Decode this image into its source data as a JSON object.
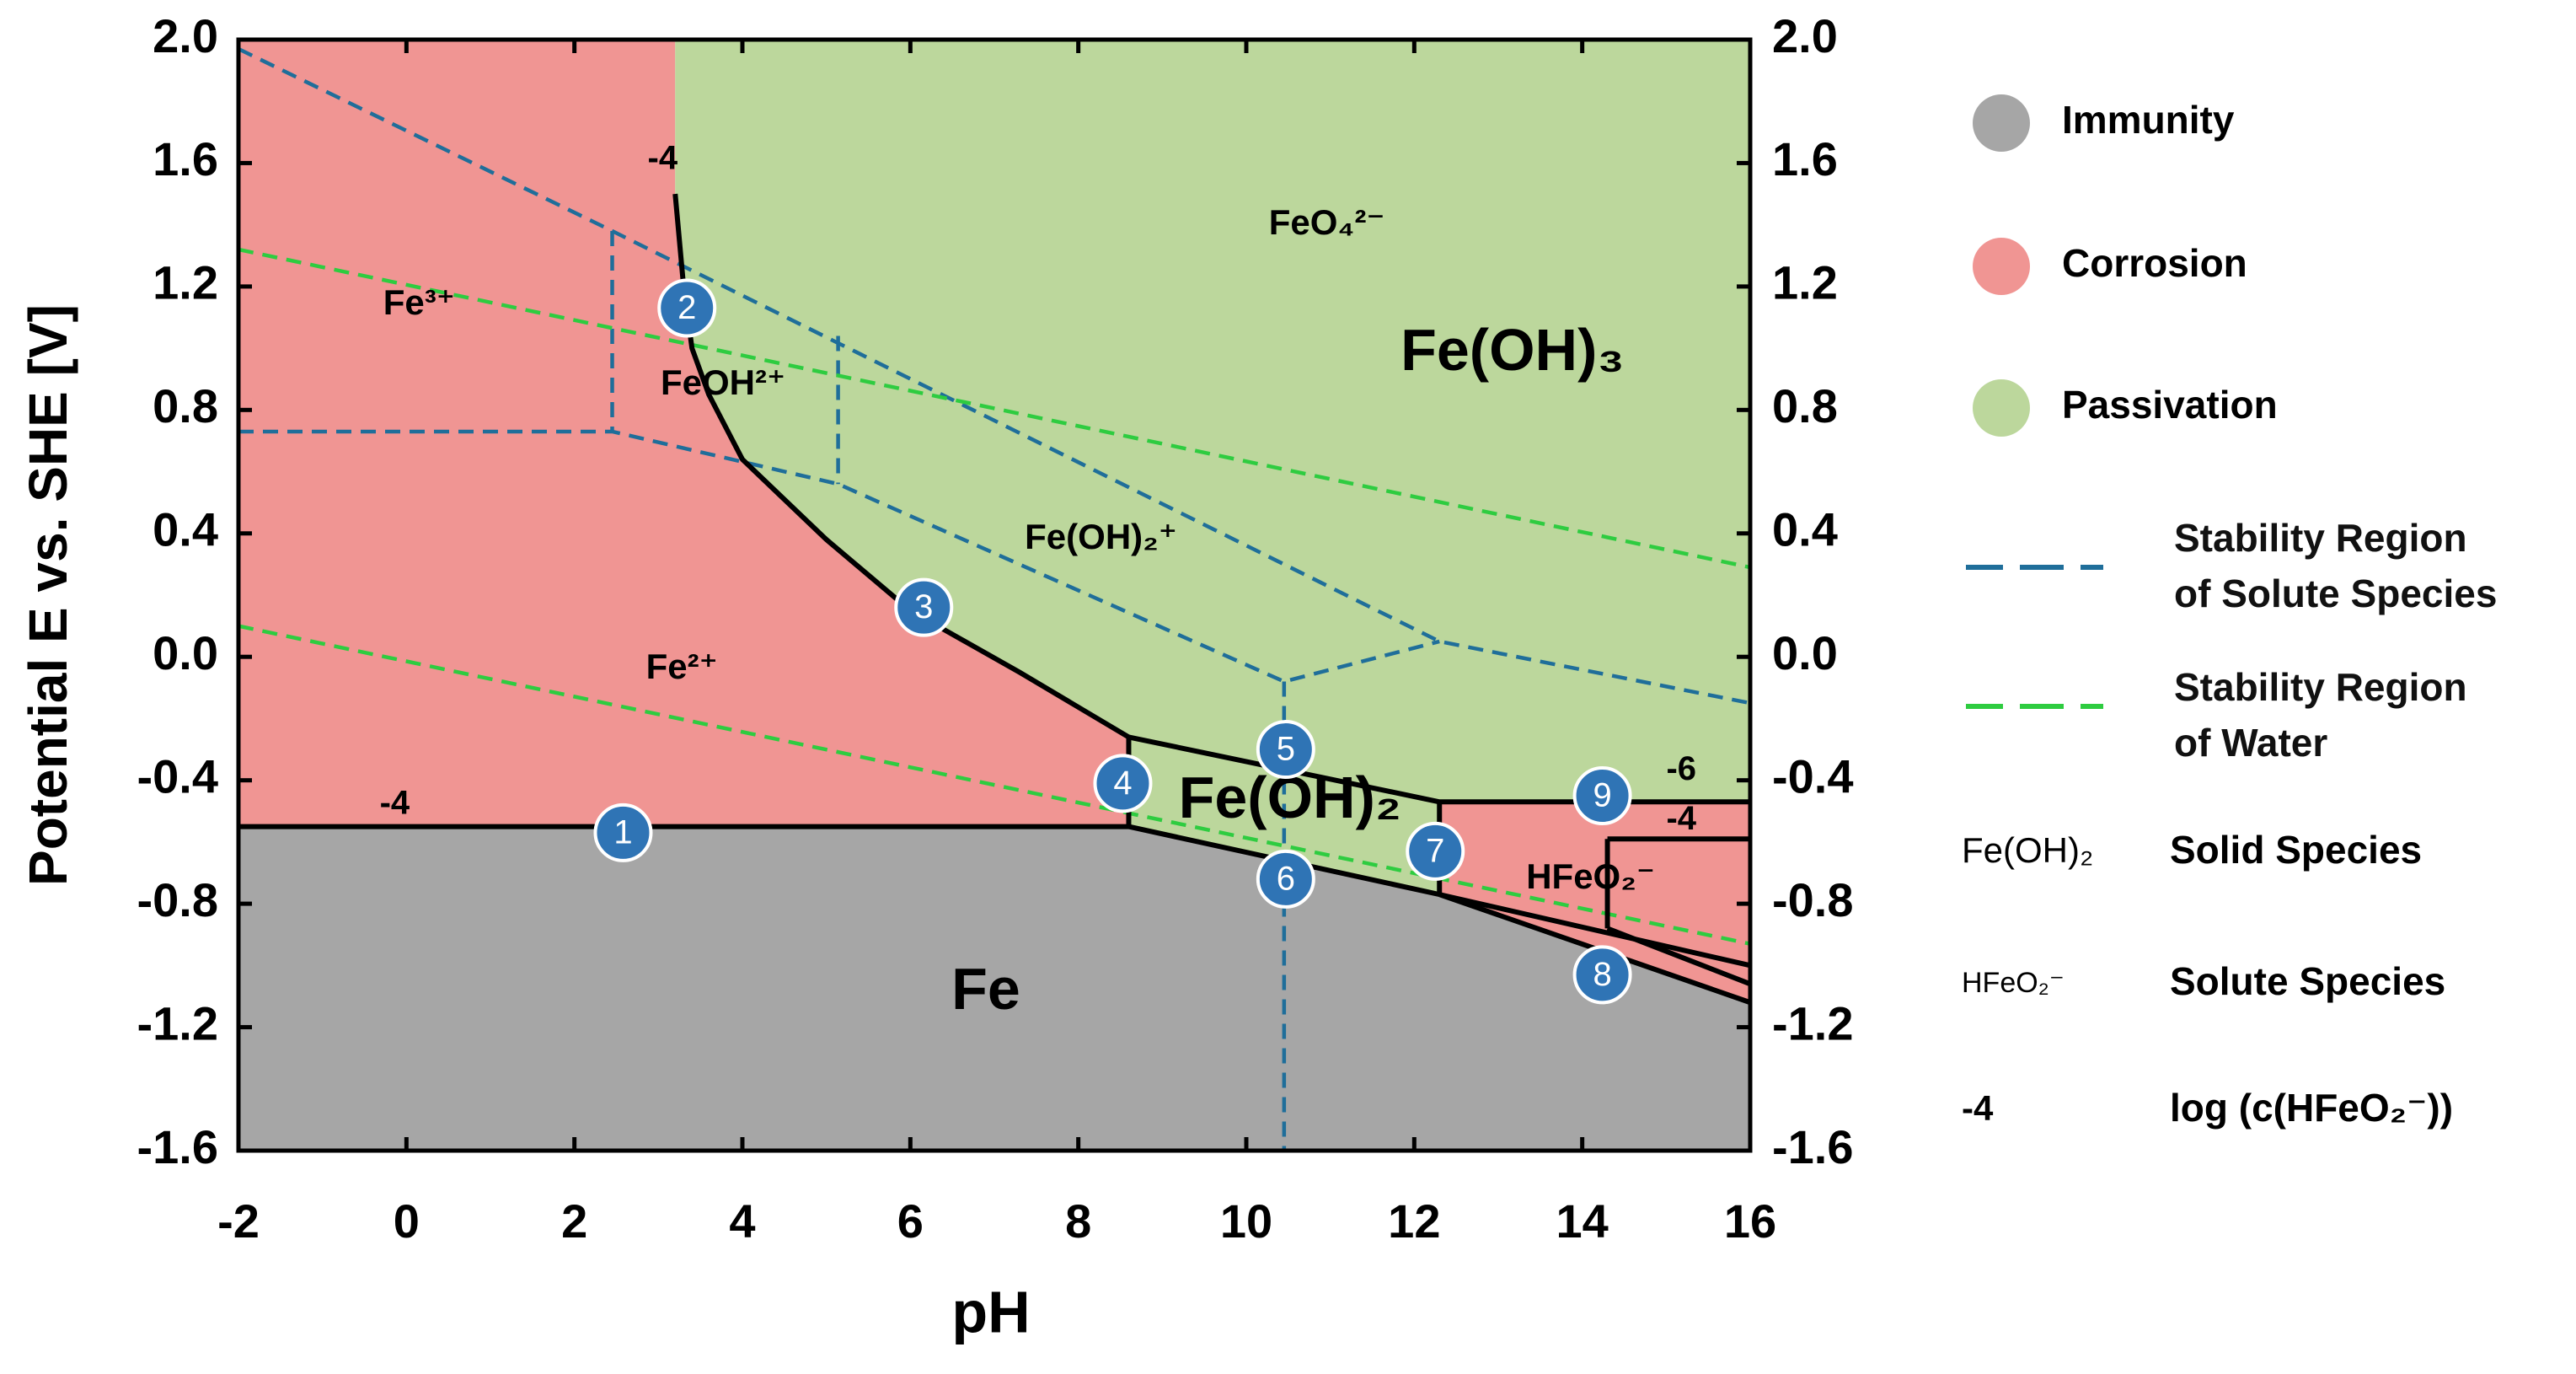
{
  "chart_data": {
    "type": "pourbaix",
    "xlabel": "pH",
    "ylabel": "Potential E vs. SHE [V]",
    "xlim": [
      -2,
      16
    ],
    "ylim": [
      -1.6,
      2.0
    ],
    "y2lim": [
      -1.6,
      2.0
    ],
    "xticks": [
      -2,
      0,
      2,
      4,
      6,
      8,
      10,
      12,
      14,
      16
    ],
    "yticks": [
      -1.6,
      -1.2,
      -0.8,
      -0.4,
      {
        "value": 0,
        "label": "0.0"
      },
      0.4,
      0.8,
      1.2,
      1.6,
      {
        "value": 2,
        "label": "2.0"
      }
    ],
    "y2ticks": [
      -1.6,
      -1.2,
      -0.8,
      -0.4,
      {
        "value": 0,
        "label": "0.0"
      },
      0.4,
      0.8,
      1.2,
      1.6,
      {
        "value": 2,
        "label": "2.0"
      }
    ],
    "legend": [
      {
        "name": "Immunity",
        "color": "#a6a6a6",
        "regions": [
          {
            "x": [
              -2,
              -2,
              8.6,
              12.3,
              16,
              16
            ],
            "y": [
              -1.6,
              -0.55,
              -0.55,
              -0.77,
              -1.12,
              -1.6
            ]
          }
        ]
      },
      {
        "name": "Corrosion",
        "color": "#f09593",
        "regions": [
          {
            "x": [
              -2,
              3.2,
              3.2,
              3.3,
              3.4,
              3.6,
              4.0,
              5.0,
              6.0,
              7.3,
              8.6,
              8.6,
              -2
            ],
            "y": [
              2.0,
              2.0,
              1.5,
              1.2,
              1.0,
              0.85,
              0.64,
              0.38,
              0.15,
              -0.05,
              -0.26,
              -0.55,
              -0.55
            ]
          },
          {
            "x": [
              12.3,
              16,
              16,
              12.3
            ],
            "y": [
              -0.47,
              -0.47,
              -1.12,
              -0.77
            ]
          }
        ]
      },
      {
        "name": "Passivation",
        "color": "#bcd79c",
        "regions": [
          {
            "x": [
              3.2,
              16,
              16,
              12.3,
              12.3,
              8.6,
              8.6,
              7.3,
              6.0,
              5.0,
              4.0,
              3.6,
              3.4,
              3.3,
              3.2
            ],
            "y": [
              2.0,
              2.0,
              -0.47,
              -0.47,
              -0.77,
              -0.55,
              -0.26,
              -0.05,
              0.15,
              0.38,
              0.64,
              0.85,
              1.0,
              1.2,
              1.5
            ]
          }
        ]
      }
    ],
    "series": [
      {
        "name": "Stability Region of Solute Species",
        "color": "#1f6e9a",
        "lines": [
          {
            "x": [
              -2,
              2.45,
              12.3,
              16
            ],
            "y": [
              1.97,
              1.38,
              0.05,
              -0.15
            ]
          },
          {
            "x": [
              2.45,
              2.45
            ],
            "y": [
              1.38,
              0.73
            ]
          },
          {
            "x": [
              -2,
              2.45,
              5.14,
              10.45,
              12.3
            ],
            "y": [
              0.73,
              0.73,
              0.56,
              -0.08,
              0.05
            ]
          },
          {
            "x": [
              5.14,
              5.14
            ],
            "y": [
              1.04,
              0.56
            ]
          },
          {
            "x": [
              10.45,
              10.45
            ],
            "y": [
              -0.08,
              -1.6
            ]
          }
        ]
      },
      {
        "name": "Stability Region of Water",
        "color": "#2ecc40",
        "lines": [
          {
            "x": [
              -2,
              16
            ],
            "y": [
              1.32,
              0.29
            ]
          },
          {
            "x": [
              -2,
              16
            ],
            "y": [
              0.1,
              -0.93
            ]
          }
        ]
      }
    ],
    "boundaries": {
      "color": "#000000",
      "lines": [
        {
          "x": [
            -2,
            8.6
          ],
          "y": [
            -0.55,
            -0.55
          ]
        },
        {
          "x": [
            3.2,
            3.2,
            3.3,
            3.4,
            3.6,
            4.0,
            5.0,
            6.0,
            7.3,
            8.6
          ],
          "y": [
            1.5,
            1.5,
            1.2,
            1.0,
            0.85,
            0.64,
            0.38,
            0.15,
            -0.05,
            -0.26
          ]
        },
        {
          "x": [
            8.6,
            12.3,
            16
          ],
          "y": [
            -0.26,
            -0.47,
            -0.47
          ]
        },
        {
          "x": [
            8.6,
            8.6
          ],
          "y": [
            -0.26,
            -0.55
          ]
        },
        {
          "x": [
            8.6,
            12.3,
            16
          ],
          "y": [
            -0.55,
            -0.77,
            -1.12
          ]
        },
        {
          "x": [
            12.3,
            12.3
          ],
          "y": [
            -0.47,
            -0.77
          ]
        },
        {
          "x": [
            14.3,
            16
          ],
          "y": [
            -0.59,
            -0.59
          ]
        },
        {
          "x": [
            14.3,
            14.3
          ],
          "y": [
            -0.59,
            -0.88
          ]
        },
        {
          "x": [
            12.3,
            16
          ],
          "y": [
            -0.77,
            -1.0
          ]
        },
        {
          "x": [
            14.3,
            16
          ],
          "y": [
            -0.88,
            -1.06
          ]
        }
      ]
    },
    "species_labels": [
      {
        "text": "FeO₄²⁻",
        "x": 10.96,
        "y": 1.4
      },
      {
        "text": "Fe³⁺",
        "x": 0.15,
        "y": 1.14
      },
      {
        "text": "FeOH²⁺",
        "x": 3.77,
        "y": 0.88
      },
      {
        "text": "Fe(OH)₂⁺",
        "x": 8.27,
        "y": 0.38
      },
      {
        "text": "Fe²⁺",
        "x": 3.28,
        "y": -0.04
      },
      {
        "text": "Fe(OH)₃",
        "x": 13.17,
        "y": 0.98,
        "large": true
      },
      {
        "text": "Fe(OH)₂",
        "x": 10.52,
        "y": -0.47,
        "large": true
      },
      {
        "text": "HFeO₂⁻",
        "x": 14.1,
        "y": -0.72
      },
      {
        "text": "Fe",
        "x": 6.9,
        "y": -1.09,
        "large": true
      }
    ],
    "concentration_labels": [
      {
        "text": -4,
        "x": 3.05,
        "y": 1.61
      },
      {
        "text": -4,
        "x": -0.14,
        "y": -0.48
      },
      {
        "text": -6,
        "x": 15.18,
        "y": -0.37
      },
      {
        "text": -4,
        "x": 15.18,
        "y": -0.53
      }
    ],
    "markers": {
      "color": "#2f74b5",
      "labels": [
        1,
        2,
        3,
        4,
        5,
        6,
        7,
        8,
        9
      ],
      "x": [
        2.58,
        3.34,
        6.16,
        8.53,
        10.47,
        10.47,
        12.25,
        14.24,
        14.24
      ],
      "y": [
        -0.57,
        1.13,
        0.16,
        -0.41,
        -0.3,
        -0.72,
        -0.63,
        -1.03,
        -0.45
      ]
    },
    "notes": [
      {
        "symbol": "Fe(OH)₂",
        "text": "Solid Species"
      },
      {
        "symbol": "HFeO₂⁻",
        "text": "Solute Species"
      },
      {
        "symbol": "-4",
        "text": "log (c(HFeO₂⁻))"
      }
    ]
  }
}
